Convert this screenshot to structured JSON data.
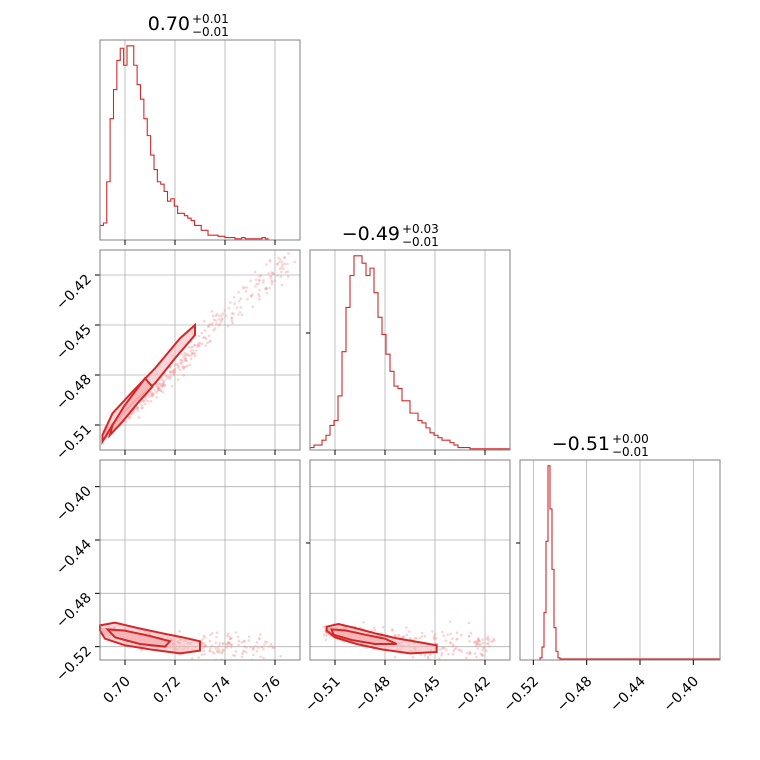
{
  "chart_data": [
    {
      "type": "histogram",
      "panel": "row-0-col-0",
      "title": {
        "value": "0.70",
        "plus": "+0.01",
        "minus": "−0.01"
      },
      "xlim": [
        0.69,
        0.77
      ],
      "x_ticks": [
        0.7,
        0.72,
        0.74,
        0.76
      ],
      "bin_start": 0.69,
      "bin_width": 0.00135,
      "counts": [
        0.06,
        0.07,
        0.24,
        0.5,
        0.62,
        0.74,
        0.79,
        0.72,
        0.8,
        0.8,
        0.72,
        0.64,
        0.58,
        0.5,
        0.43,
        0.35,
        0.29,
        0.24,
        0.23,
        0.2,
        0.16,
        0.17,
        0.14,
        0.11,
        0.11,
        0.1,
        0.09,
        0.08,
        0.06,
        0.06,
        0.04,
        0.04,
        0.02,
        0.02,
        0.02,
        0.015,
        0.015,
        0.01,
        0.01,
        0.01,
        0.005,
        0.005,
        0.01,
        0.005,
        0.005,
        0.005,
        0.005,
        0.005,
        0.01,
        0.005
      ]
    },
    {
      "type": "histogram",
      "panel": "row-1-col-1",
      "title": {
        "value": "−0.49",
        "plus": "+0.03",
        "minus": "−0.01"
      },
      "xlim": [
        -0.525,
        -0.405
      ],
      "x_ticks": [
        -0.51,
        -0.48,
        -0.45,
        -0.42
      ],
      "bin_start": -0.525,
      "bin_width": 0.0024,
      "counts": [
        0.01,
        0.02,
        0.02,
        0.04,
        0.06,
        0.1,
        0.12,
        0.22,
        0.4,
        0.58,
        0.71,
        0.79,
        0.79,
        0.76,
        0.71,
        0.74,
        0.64,
        0.54,
        0.47,
        0.39,
        0.32,
        0.26,
        0.25,
        0.2,
        0.2,
        0.15,
        0.15,
        0.12,
        0.11,
        0.09,
        0.07,
        0.06,
        0.05,
        0.04,
        0.04,
        0.03,
        0.02,
        0.01,
        0.01,
        0.01,
        0.005,
        0.005,
        0.005,
        0.005,
        0.005,
        0.005,
        0.005,
        0.005,
        0.005,
        0.005
      ]
    },
    {
      "type": "histogram",
      "panel": "row-2-col-2",
      "title": {
        "value": "−0.51",
        "plus": "+0.00",
        "minus": "−0.01"
      },
      "xlim": [
        -0.53,
        -0.38
      ],
      "x_ticks": [
        -0.52,
        -0.48,
        -0.44,
        -0.4
      ],
      "bin_start": -0.53,
      "bin_width": 0.0015,
      "counts": [
        0,
        0,
        0,
        0,
        0,
        0,
        0,
        0,
        0,
        0,
        0.01,
        0.06,
        0.22,
        0.55,
        0.9,
        0.7,
        0.42,
        0.15,
        0.04,
        0.01,
        0.005,
        0.005,
        0.005,
        0.005,
        0.005,
        0.005,
        0.005,
        0.005,
        0.005,
        0.005,
        0.005,
        0.005,
        0.005,
        0.005,
        0.005,
        0.005,
        0.005,
        0.005,
        0.005,
        0.005,
        0.005,
        0.005,
        0.005,
        0.005,
        0.005,
        0.005,
        0.005,
        0.005,
        0.005,
        0.005,
        0.005,
        0.005,
        0.005,
        0.005,
        0.005,
        0.005,
        0.005,
        0.005,
        0.005,
        0.005,
        0.005,
        0.005,
        0.005,
        0.005,
        0.005,
        0.005,
        0.005,
        0.005,
        0.005,
        0.005,
        0.005,
        0.005,
        0.005,
        0.005,
        0.005,
        0.005,
        0.005,
        0.005,
        0.005,
        0.005,
        0.005,
        0.005,
        0.005,
        0.005,
        0.005,
        0.005,
        0.005,
        0.005,
        0.005,
        0.005,
        0.005,
        0.005,
        0.005,
        0.005,
        0.005,
        0.005,
        0.005,
        0.005,
        0.005,
        0.005
      ]
    },
    {
      "type": "scatter",
      "panel": "row-1-col-0",
      "xlim": [
        0.69,
        0.77
      ],
      "ylim": [
        -0.525,
        -0.405
      ],
      "x_ticks": [
        0.7,
        0.72,
        0.74,
        0.76
      ],
      "y_ticks": [
        -0.51,
        -0.48,
        -0.45,
        -0.42
      ],
      "trend": {
        "x": [
          0.692,
          0.7,
          0.712,
          0.72,
          0.728,
          0.74,
          0.755,
          0.766
        ],
        "y": [
          -0.515,
          -0.505,
          -0.49,
          -0.478,
          -0.462,
          -0.445,
          -0.425,
          -0.412
        ]
      },
      "contour": {
        "x": [
          0.691,
          0.695,
          0.703,
          0.712,
          0.72,
          0.728,
          0.728,
          0.722,
          0.712,
          0.703,
          0.695,
          0.691
        ],
        "y": [
          -0.52,
          -0.51,
          -0.497,
          -0.485,
          -0.47,
          -0.456,
          -0.45,
          -0.458,
          -0.476,
          -0.49,
          -0.503,
          -0.516
        ]
      },
      "inner_contour": {
        "x": [
          0.694,
          0.699,
          0.705,
          0.711,
          0.708,
          0.7,
          0.695
        ],
        "y": [
          -0.516,
          -0.508,
          -0.497,
          -0.487,
          -0.482,
          -0.498,
          -0.51
        ]
      }
    },
    {
      "type": "scatter",
      "panel": "row-2-col-0",
      "xlim": [
        0.69,
        0.77
      ],
      "ylim": [
        -0.53,
        -0.38
      ],
      "x_ticks": [
        0.7,
        0.72,
        0.74,
        0.76
      ],
      "y_ticks": [
        -0.4,
        -0.44,
        -0.48,
        -0.52
      ],
      "trend": {
        "x": [
          0.69,
          0.7,
          0.71,
          0.72,
          0.73,
          0.74,
          0.76
        ],
        "y": [
          -0.508,
          -0.512,
          -0.515,
          -0.518,
          -0.519,
          -0.52,
          -0.52
        ]
      },
      "contour": {
        "x": [
          0.69,
          0.696,
          0.705,
          0.715,
          0.723,
          0.73,
          0.73,
          0.722,
          0.71,
          0.7,
          0.692,
          0.69
        ],
        "y": [
          -0.504,
          -0.502,
          -0.506,
          -0.51,
          -0.513,
          -0.516,
          -0.523,
          -0.525,
          -0.522,
          -0.519,
          -0.514,
          -0.508
        ]
      },
      "inner_contour": {
        "x": [
          0.693,
          0.7,
          0.71,
          0.718,
          0.716,
          0.706,
          0.696
        ],
        "y": [
          -0.507,
          -0.508,
          -0.512,
          -0.516,
          -0.52,
          -0.518,
          -0.513
        ]
      }
    },
    {
      "type": "scatter",
      "panel": "row-2-col-1",
      "xlim": [
        -0.525,
        -0.405
      ],
      "ylim": [
        -0.53,
        -0.38
      ],
      "x_ticks": [
        -0.51,
        -0.48,
        -0.45,
        -0.42
      ],
      "y_ticks": [
        -0.4,
        -0.44,
        -0.48,
        -0.52
      ],
      "trend": {
        "x": [
          -0.515,
          -0.505,
          -0.495,
          -0.485,
          -0.47,
          -0.45,
          -0.43,
          -0.415
        ],
        "y": [
          -0.508,
          -0.51,
          -0.512,
          -0.514,
          -0.516,
          -0.518,
          -0.519,
          -0.52
        ]
      },
      "contour": {
        "x": [
          -0.515,
          -0.508,
          -0.498,
          -0.486,
          -0.472,
          -0.458,
          -0.449,
          -0.449,
          -0.465,
          -0.482,
          -0.497,
          -0.51,
          -0.515
        ],
        "y": [
          -0.505,
          -0.503,
          -0.506,
          -0.51,
          -0.514,
          -0.517,
          -0.519,
          -0.524,
          -0.525,
          -0.522,
          -0.518,
          -0.513,
          -0.508
        ]
      },
      "inner_contour": {
        "x": [
          -0.512,
          -0.503,
          -0.492,
          -0.48,
          -0.473,
          -0.486,
          -0.5,
          -0.511
        ],
        "y": [
          -0.507,
          -0.508,
          -0.511,
          -0.514,
          -0.518,
          -0.518,
          -0.515,
          -0.511
        ]
      }
    }
  ],
  "colors": {
    "line": "#d62728",
    "fill": "#f4b6b8",
    "scatter": "#f3a0a2",
    "grid": "#b0b0b0",
    "frame": "#808080"
  }
}
